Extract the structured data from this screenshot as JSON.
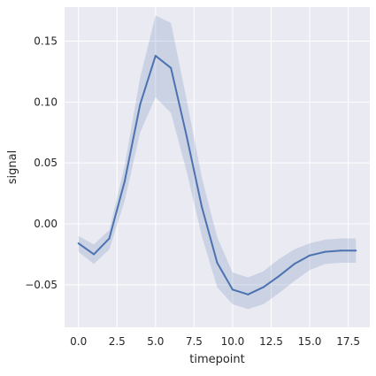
{
  "chart_data": {
    "type": "line",
    "xlabel": "timepoint",
    "ylabel": "signal",
    "xlim": [
      -0.9,
      18.9
    ],
    "ylim": [
      -0.085,
      0.178
    ],
    "grid": true,
    "x_ticks": [
      0.0,
      2.5,
      5.0,
      7.5,
      10.0,
      12.5,
      15.0,
      17.5
    ],
    "x_tick_labels": [
      "0.0",
      "2.5",
      "5.0",
      "7.5",
      "10.0",
      "12.5",
      "15.0",
      "17.5"
    ],
    "y_ticks": [
      -0.05,
      0.0,
      0.05,
      0.1,
      0.15
    ],
    "y_tick_labels": [
      "−0.05",
      "0.00",
      "0.05",
      "0.10",
      "0.15"
    ],
    "series": [
      {
        "x": [
          0,
          1,
          2,
          3,
          4,
          5,
          6,
          7,
          8,
          9,
          10,
          11,
          12,
          13,
          14,
          15,
          16,
          17,
          18
        ],
        "values": [
          -0.016,
          -0.025,
          -0.012,
          0.035,
          0.098,
          0.138,
          0.128,
          0.073,
          0.014,
          -0.032,
          -0.054,
          -0.058,
          -0.052,
          -0.043,
          -0.033,
          -0.026,
          -0.023,
          -0.022,
          -0.022
        ],
        "ci_upper": [
          -0.01,
          -0.017,
          -0.005,
          0.048,
          0.12,
          0.171,
          0.165,
          0.103,
          0.038,
          -0.011,
          -0.04,
          -0.044,
          -0.039,
          -0.029,
          -0.021,
          -0.016,
          -0.013,
          -0.012,
          -0.012
        ],
        "ci_lower": [
          -0.023,
          -0.033,
          -0.021,
          0.019,
          0.075,
          0.104,
          0.091,
          0.044,
          -0.01,
          -0.052,
          -0.066,
          -0.07,
          -0.066,
          -0.057,
          -0.047,
          -0.038,
          -0.033,
          -0.032,
          -0.032
        ]
      }
    ],
    "colors": {
      "line": "#4c72b0",
      "band": "#4c72b0",
      "plot_background": "#eaeaf2",
      "grid": "#ffffff"
    }
  }
}
